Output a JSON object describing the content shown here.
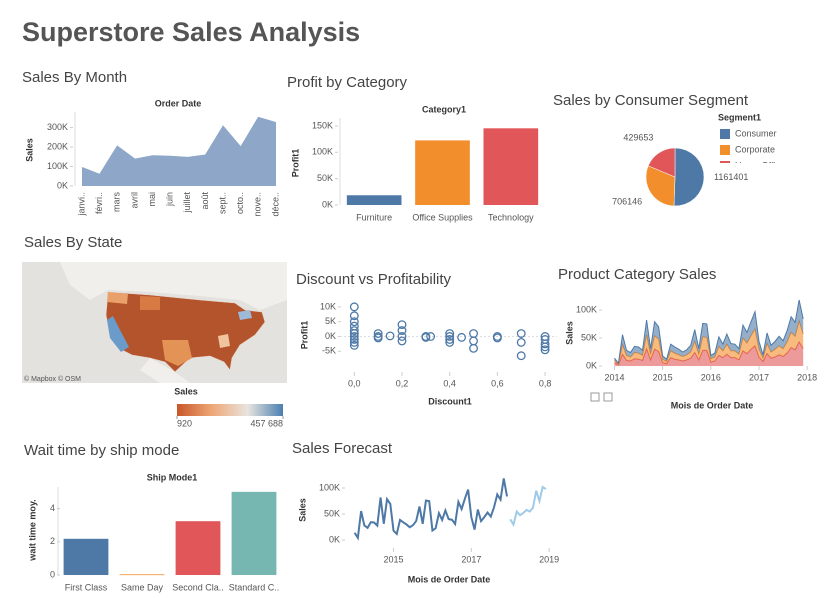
{
  "title": "Superstore Sales Analysis",
  "chart_data": [
    {
      "type": "area",
      "title": "Sales By Month",
      "x_label": "Order Date",
      "y_label": "Sales",
      "color": "#8ea6c8",
      "categories": [
        "janvi..",
        "févri..",
        "mars",
        "avril",
        "mai",
        "juin",
        "juillet",
        "août",
        "sept..",
        "octo..",
        "nove..",
        "déce.."
      ],
      "values": [
        94925,
        59751,
        205005,
        137762,
        155028,
        152719,
        147238,
        159044,
        307650,
        200323,
        352461,
        325294
      ],
      "ylim": [
        0,
        380000
      ],
      "yticks": [
        {
          "value": 0,
          "label": "0K"
        },
        {
          "value": 100000,
          "label": "100K"
        },
        {
          "value": 200000,
          "label": "200K"
        },
        {
          "value": 300000,
          "label": "300K"
        }
      ]
    },
    {
      "type": "bar",
      "title": "Profit by Category",
      "x_label": "Category1",
      "y_label": "Profit1",
      "categories": [
        "Furniture",
        "Office Supplies",
        "Technology"
      ],
      "values": [
        18451,
        122491,
        145455
      ],
      "colors": [
        "#4e79a7",
        "#f28e2b",
        "#e15759"
      ],
      "ylim": [
        0,
        165000
      ],
      "yticks": [
        {
          "value": 0,
          "label": "0K"
        },
        {
          "value": 50000,
          "label": "50K"
        },
        {
          "value": 100000,
          "label": "100K"
        },
        {
          "value": 150000,
          "label": "150K"
        }
      ]
    },
    {
      "type": "pie",
      "title": "Sales by Consumer Segment",
      "legend_title": "Segment1",
      "categories": [
        "Consumer",
        "Corporate",
        "Home Office"
      ],
      "values": [
        1161401,
        706146,
        429653
      ],
      "value_labels": [
        "1161401",
        "706146",
        "429653"
      ],
      "colors": [
        "#4e79a7",
        "#f28e2b",
        "#e15759"
      ]
    },
    {
      "type": "map",
      "title": "Sales By State",
      "legend_title": "Sales",
      "attribution": "© Mapbox © OSM",
      "color_range": [
        920,
        {
          "value": 457688,
          "label": "457 688"
        }
      ],
      "colors": [
        "#c8572a",
        "#eea878",
        "#e8e4df",
        "#4a7fb0"
      ]
    },
    {
      "type": "scatter",
      "title": "Discount vs Profitability",
      "x_label": "Discount1",
      "y_label": "Profit1",
      "color": "#4e79a7",
      "x": [
        0,
        0,
        0,
        0,
        0,
        0,
        0,
        0,
        0,
        0,
        0.1,
        0.1,
        0.1,
        0.15,
        0.2,
        0.2,
        0.2,
        0.2,
        0.3,
        0.3,
        0.32,
        0.4,
        0.4,
        0.4,
        0.4,
        0.45,
        0.5,
        0.5,
        0.5,
        0.6,
        0.6,
        0.7,
        0.7,
        0.7,
        0.8,
        0.8,
        0.8,
        0.8,
        0.8
      ],
      "y": [
        10000,
        7000,
        5000,
        3500,
        2000,
        1000,
        0,
        -1000,
        -2000,
        -3000,
        1000,
        0,
        -500,
        200,
        4000,
        2000,
        0,
        -1500,
        0,
        -300,
        0,
        1000,
        0,
        -1000,
        -2000,
        -300,
        1000,
        -1500,
        -4000,
        0,
        -500,
        1000,
        -2000,
        -6500,
        0,
        -1000,
        -2500,
        -3500,
        -4500
      ],
      "xlim": [
        -0.06,
        0.85
      ],
      "ylim": [
        -12000,
        13000
      ],
      "xticks": [
        {
          "value": 0,
          "label": "0,0"
        },
        {
          "value": 0.2,
          "label": "0,2"
        },
        {
          "value": 0.4,
          "label": "0,4"
        },
        {
          "value": 0.6,
          "label": "0,6"
        },
        {
          "value": 0.8,
          "label": "0,8"
        }
      ],
      "yticks": [
        {
          "value": -5000,
          "label": "-5K"
        },
        {
          "value": 0,
          "label": "0K"
        },
        {
          "value": 5000,
          "label": "5K"
        },
        {
          "value": 10000,
          "label": "10K"
        }
      ]
    },
    {
      "type": "stacked_area",
      "title": "Product Category Sales",
      "x_label": "Mois de Order Date",
      "y_label": "Sales",
      "x": [
        2014,
        2014.083,
        2014.167,
        2014.25,
        2014.333,
        2014.417,
        2014.5,
        2014.583,
        2014.667,
        2014.75,
        2014.833,
        2014.917,
        2015,
        2015.083,
        2015.167,
        2015.25,
        2015.333,
        2015.417,
        2015.5,
        2015.583,
        2015.667,
        2015.75,
        2015.833,
        2015.917,
        2016,
        2016.083,
        2016.167,
        2016.25,
        2016.333,
        2016.417,
        2016.5,
        2016.583,
        2016.667,
        2016.75,
        2016.833,
        2016.917,
        2017,
        2017.083,
        2017.167,
        2017.25,
        2017.333,
        2017.417,
        2017.5,
        2017.583,
        2017.667,
        2017.75,
        2017.833,
        2017.917
      ],
      "series": [
        {
          "color": "#e15759",
          "values": [
            6000,
            2000,
            21000,
            10000,
            9000,
            13000,
            12000,
            10000,
            31000,
            11000,
            30000,
            26000,
            6000,
            4000,
            15000,
            12000,
            11000,
            9000,
            11000,
            14000,
            24000,
            11000,
            28000,
            28000,
            7000,
            9000,
            19000,
            15000,
            21000,
            15000,
            15000,
            11000,
            27000,
            22000,
            30000,
            36000,
            16000,
            8000,
            22000,
            14000,
            16000,
            20000,
            17000,
            23000,
            33000,
            29000,
            43000,
            31000
          ]
        },
        {
          "color": "#f28e2b",
          "values": [
            4000,
            1000,
            17000,
            9000,
            7000,
            11000,
            11000,
            9000,
            25000,
            10000,
            24000,
            22000,
            6000,
            4000,
            12000,
            11000,
            9000,
            8000,
            9000,
            11000,
            20000,
            10000,
            24000,
            23000,
            6000,
            7000,
            16000,
            12000,
            18000,
            12000,
            12000,
            10000,
            23000,
            19000,
            24000,
            30000,
            14000,
            6000,
            18000,
            11000,
            14000,
            16000,
            14000,
            20000,
            27000,
            24000,
            37000,
            26000
          ]
        },
        {
          "color": "#4e79a7",
          "values": [
            4000,
            2000,
            18000,
            9000,
            8000,
            11000,
            11000,
            9000,
            26000,
            10000,
            25000,
            22000,
            6000,
            4000,
            12000,
            11000,
            10000,
            8000,
            9000,
            12000,
            21000,
            10000,
            24000,
            24000,
            6000,
            7000,
            17000,
            12000,
            18000,
            13000,
            12000,
            10000,
            23000,
            19000,
            25000,
            31000,
            14000,
            6000,
            19000,
            12000,
            14000,
            17000,
            14000,
            20000,
            28000,
            25000,
            38000,
            27000
          ]
        }
      ],
      "xlim": [
        2013.7,
        2018.1
      ],
      "xticks": [
        2014,
        2015,
        2016,
        2017,
        2018
      ],
      "ylim": [
        0,
        125000
      ],
      "yticks": [
        {
          "value": 0,
          "label": "0K"
        },
        {
          "value": 50000,
          "label": "50K"
        },
        {
          "value": 100000,
          "label": "100K"
        }
      ]
    },
    {
      "type": "bar",
      "title": "Wait time by ship mode",
      "x_label": "Ship Mode1",
      "y_label": "wait time moy.",
      "categories": [
        "First Class",
        "Same Day",
        "Second Cla..",
        "Standard C.."
      ],
      "values": [
        2.18,
        0.04,
        3.24,
        5.01
      ],
      "colors": [
        "#4e79a7",
        "#f28e2b",
        "#e15759",
        "#76b7b2"
      ],
      "ylim": [
        0,
        5.3
      ],
      "yticks": [
        0,
        2,
        4
      ]
    },
    {
      "type": "line",
      "title": "Sales Forecast",
      "x_label": "Mois de Order Date",
      "y_label": "Sales",
      "series": [
        {
          "color": "#4e79a7",
          "x": [
            2014,
            2014.083,
            2014.167,
            2014.25,
            2014.333,
            2014.417,
            2014.5,
            2014.583,
            2014.667,
            2014.75,
            2014.833,
            2014.917,
            2015,
            2015.083,
            2015.167,
            2015.25,
            2015.333,
            2015.417,
            2015.5,
            2015.583,
            2015.667,
            2015.75,
            2015.833,
            2015.917,
            2016,
            2016.083,
            2016.167,
            2016.25,
            2016.333,
            2016.417,
            2016.5,
            2016.583,
            2016.667,
            2016.75,
            2016.833,
            2016.917,
            2017,
            2017.083,
            2017.167,
            2017.25,
            2017.333,
            2017.417,
            2017.5,
            2017.583,
            2017.667,
            2017.75,
            2017.833,
            2017.917
          ],
          "values": [
            14237,
            4520,
            55691,
            28295,
            23648,
            34595,
            33946,
            27909,
            81777,
            31453,
            78629,
            69546,
            18174,
            11951,
            38726,
            34195,
            30132,
            24797,
            28765,
            36898,
            64595,
            31405,
            75973,
            74919,
            18542,
            22979,
            51716,
            38750,
            56988,
            40345,
            39262,
            31115,
            73410,
            59688,
            79412,
            96999,
            43971,
            20301,
            58872,
            36522,
            44261,
            52981,
            45264,
            63121,
            87867,
            77777,
            118448,
            83829
          ]
        },
        {
          "color": "#a0cbe8",
          "x": [
            2018,
            2018.083,
            2018.167,
            2018.25,
            2018.333,
            2018.417,
            2018.5,
            2018.583,
            2018.667,
            2018.75,
            2018.833,
            2018.917
          ],
          "values": [
            40000,
            30000,
            55000,
            48000,
            52000,
            58000,
            55000,
            62000,
            95000,
            75000,
            102000,
            98000
          ]
        }
      ],
      "xlim": [
        2013.83,
        2019.15
      ],
      "xticks": [
        2015,
        2017,
        2019
      ],
      "ylim": [
        -15000,
        125000
      ],
      "yticks": [
        {
          "value": 0,
          "label": "0K"
        },
        {
          "value": 50000,
          "label": "50K"
        },
        {
          "value": 100000,
          "label": "100K"
        }
      ]
    }
  ]
}
